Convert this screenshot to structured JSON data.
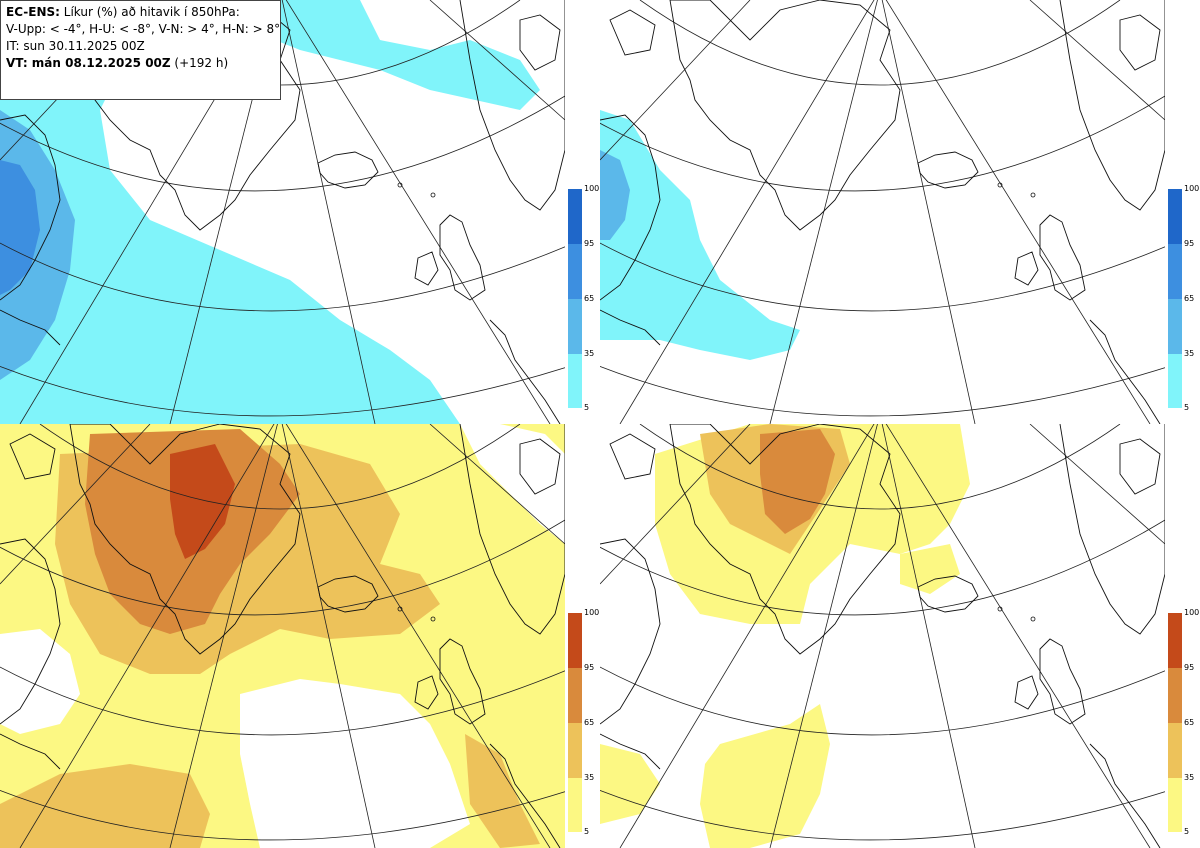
{
  "title": {
    "product": "EC-ENS:",
    "description": " Líkur (%) að hitavik í 850hPa:",
    "categories": "V-Upp: < -4°, H-U: < -8°, V-N: > 4°, H-N: > 8°",
    "initial_time": "IT: sun 30.11.2025 00Z",
    "valid_time_label": "VT: mán 08.12.2025 00Z",
    "lead_time": " (+192 h)"
  },
  "panels": [
    {
      "name": "V-Upp",
      "color_scheme": "cold"
    },
    {
      "name": "H-U",
      "color_scheme": "cold"
    },
    {
      "name": "V-N",
      "color_scheme": "warm"
    },
    {
      "name": "H-N",
      "color_scheme": "warm"
    }
  ],
  "colorbar": {
    "ticks": [
      "100",
      "95",
      "65",
      "35",
      "5"
    ],
    "cold_colors": [
      "#1f67c9",
      "#3d8fe0",
      "#5bb8ea",
      "#80f4fa"
    ],
    "warm_colors": [
      "#c44a1a",
      "#d98a3c",
      "#edc25a",
      "#fcf883"
    ]
  }
}
